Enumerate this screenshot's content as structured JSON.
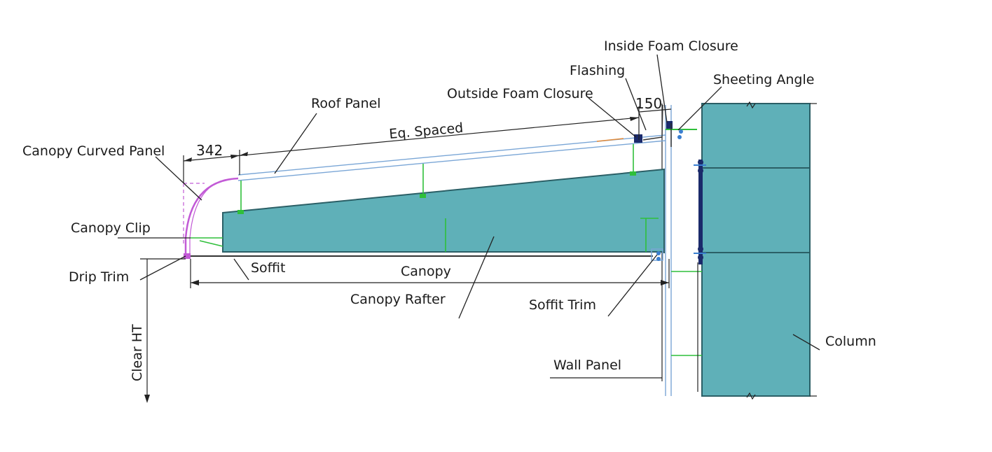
{
  "colors": {
    "steel": "#5fb0b8",
    "steel_dark": "#2b5f66",
    "panel_blue": "#7aa6d6",
    "clip_green": "#2fbf3a",
    "curved_magenta": "#c25ad6",
    "bolt_navy": "#1b2a6b",
    "line": "#222222"
  },
  "labels": {
    "inside_foam_closure": "Inside Foam Closure",
    "flashing": "Flashing",
    "sheeting_angle": "Sheeting Angle",
    "outside_foam_closure": "Outside Foam Closure",
    "roof_panel": "Roof Panel",
    "eq_spaced": "Eq. Spaced",
    "canopy_curved_panel": "Canopy Curved Panel",
    "canopy_clip": "Canopy Clip",
    "drip_trim": "Drip Trim",
    "soffit": "Soffit",
    "canopy": "Canopy",
    "canopy_rafter": "Canopy Rafter",
    "soffit_trim": "Soffit Trim",
    "column": "Column",
    "wall_panel": "Wall Panel",
    "clear_ht": "Clear HT"
  },
  "dimensions": {
    "curved_panel_offset": "342",
    "flashing_offset": "150"
  }
}
